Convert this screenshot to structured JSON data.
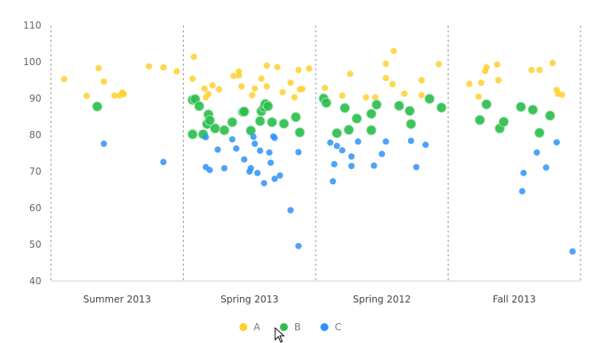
{
  "chart_data": {
    "type": "scatter",
    "title": "",
    "xlabel": "",
    "ylabel": "",
    "ylim": [
      40,
      110
    ],
    "yticks": [
      40,
      50,
      60,
      70,
      80,
      90,
      100,
      110
    ],
    "categories": [
      "Summer 2013",
      "Spring 2013",
      "Spring 2012",
      "Fall 2013"
    ],
    "series": [
      {
        "name": "A",
        "color": "#FFD02F",
        "points": [
          {
            "cat": 0,
            "off": 0.1,
            "y": 95.3
          },
          {
            "cat": 0,
            "off": 0.27,
            "y": 90.7
          },
          {
            "cat": 0,
            "off": 0.36,
            "y": 98.3
          },
          {
            "cat": 0,
            "off": 0.4,
            "y": 94.6
          },
          {
            "cat": 0,
            "off": 0.48,
            "y": 90.8
          },
          {
            "cat": 0,
            "off": 0.52,
            "y": 90.8
          },
          {
            "cat": 0,
            "off": 0.54,
            "y": 91.6
          },
          {
            "cat": 0,
            "off": 0.55,
            "y": 91.2
          },
          {
            "cat": 0,
            "off": 0.74,
            "y": 98.8
          },
          {
            "cat": 0,
            "off": 0.85,
            "y": 98.5
          },
          {
            "cat": 0,
            "off": 0.95,
            "y": 97.4
          },
          {
            "cat": 1,
            "off": 0.07,
            "y": 95.4
          },
          {
            "cat": 1,
            "off": 0.08,
            "y": 101.4
          },
          {
            "cat": 1,
            "off": 0.16,
            "y": 92.7
          },
          {
            "cat": 1,
            "off": 0.17,
            "y": 90.3
          },
          {
            "cat": 1,
            "off": 0.19,
            "y": 91.2
          },
          {
            "cat": 1,
            "off": 0.22,
            "y": 93.6
          },
          {
            "cat": 1,
            "off": 0.27,
            "y": 92.5
          },
          {
            "cat": 1,
            "off": 0.38,
            "y": 96.2
          },
          {
            "cat": 1,
            "off": 0.42,
            "y": 97.4
          },
          {
            "cat": 1,
            "off": 0.42,
            "y": 96.3
          },
          {
            "cat": 1,
            "off": 0.44,
            "y": 93.3
          },
          {
            "cat": 1,
            "off": 0.52,
            "y": 90.9
          },
          {
            "cat": 1,
            "off": 0.54,
            "y": 92.7
          },
          {
            "cat": 1,
            "off": 0.59,
            "y": 95.4
          },
          {
            "cat": 1,
            "off": 0.63,
            "y": 93.3
          },
          {
            "cat": 1,
            "off": 0.63,
            "y": 99.0
          },
          {
            "cat": 1,
            "off": 0.71,
            "y": 98.6
          },
          {
            "cat": 1,
            "off": 0.75,
            "y": 91.7
          },
          {
            "cat": 1,
            "off": 0.81,
            "y": 94.3
          },
          {
            "cat": 1,
            "off": 0.84,
            "y": 90.3
          },
          {
            "cat": 1,
            "off": 0.87,
            "y": 97.8
          },
          {
            "cat": 1,
            "off": 0.88,
            "y": 92.5
          },
          {
            "cat": 1,
            "off": 0.9,
            "y": 92.6
          },
          {
            "cat": 1,
            "off": 0.95,
            "y": 98.2
          },
          {
            "cat": 2,
            "off": 0.07,
            "y": 92.9
          },
          {
            "cat": 2,
            "off": 0.2,
            "y": 90.8
          },
          {
            "cat": 2,
            "off": 0.26,
            "y": 96.7
          },
          {
            "cat": 2,
            "off": 0.38,
            "y": 90.3
          },
          {
            "cat": 2,
            "off": 0.45,
            "y": 90.3
          },
          {
            "cat": 2,
            "off": 0.53,
            "y": 99.5
          },
          {
            "cat": 2,
            "off": 0.53,
            "y": 95.6
          },
          {
            "cat": 2,
            "off": 0.58,
            "y": 93.9
          },
          {
            "cat": 2,
            "off": 0.59,
            "y": 103.0
          },
          {
            "cat": 2,
            "off": 0.67,
            "y": 91.3
          },
          {
            "cat": 2,
            "off": 0.8,
            "y": 95.0
          },
          {
            "cat": 2,
            "off": 0.8,
            "y": 90.9
          },
          {
            "cat": 2,
            "off": 0.93,
            "y": 99.4
          },
          {
            "cat": 3,
            "off": 0.16,
            "y": 94.0
          },
          {
            "cat": 3,
            "off": 0.23,
            "y": 90.5
          },
          {
            "cat": 3,
            "off": 0.25,
            "y": 94.3
          },
          {
            "cat": 3,
            "off": 0.28,
            "y": 97.5
          },
          {
            "cat": 3,
            "off": 0.29,
            "y": 98.5
          },
          {
            "cat": 3,
            "off": 0.37,
            "y": 99.3
          },
          {
            "cat": 3,
            "off": 0.38,
            "y": 95.0
          },
          {
            "cat": 3,
            "off": 0.63,
            "y": 97.8
          },
          {
            "cat": 3,
            "off": 0.69,
            "y": 97.8
          },
          {
            "cat": 3,
            "off": 0.79,
            "y": 99.7
          },
          {
            "cat": 3,
            "off": 0.82,
            "y": 92.3
          },
          {
            "cat": 3,
            "off": 0.83,
            "y": 91.3
          },
          {
            "cat": 3,
            "off": 0.86,
            "y": 91.0
          }
        ]
      },
      {
        "name": "B",
        "color": "#2DBE4E",
        "points": [
          {
            "cat": 0,
            "off": 0.35,
            "y": 87.8
          },
          {
            "cat": 1,
            "off": 0.07,
            "y": 89.6
          },
          {
            "cat": 1,
            "off": 0.07,
            "y": 80.2
          },
          {
            "cat": 1,
            "off": 0.09,
            "y": 89.8
          },
          {
            "cat": 1,
            "off": 0.12,
            "y": 87.9
          },
          {
            "cat": 1,
            "off": 0.15,
            "y": 80.2
          },
          {
            "cat": 1,
            "off": 0.18,
            "y": 83.0
          },
          {
            "cat": 1,
            "off": 0.19,
            "y": 85.6
          },
          {
            "cat": 1,
            "off": 0.2,
            "y": 84.0
          },
          {
            "cat": 1,
            "off": 0.24,
            "y": 81.8
          },
          {
            "cat": 1,
            "off": 0.31,
            "y": 81.3
          },
          {
            "cat": 1,
            "off": 0.37,
            "y": 83.5
          },
          {
            "cat": 1,
            "off": 0.45,
            "y": 86.3
          },
          {
            "cat": 1,
            "off": 0.46,
            "y": 86.4
          },
          {
            "cat": 1,
            "off": 0.51,
            "y": 81.2
          },
          {
            "cat": 1,
            "off": 0.58,
            "y": 83.8
          },
          {
            "cat": 1,
            "off": 0.59,
            "y": 86.5
          },
          {
            "cat": 1,
            "off": 0.61,
            "y": 87.6
          },
          {
            "cat": 1,
            "off": 0.62,
            "y": 88.5
          },
          {
            "cat": 1,
            "off": 0.64,
            "y": 87.9
          },
          {
            "cat": 1,
            "off": 0.67,
            "y": 83.5
          },
          {
            "cat": 1,
            "off": 0.76,
            "y": 83.1
          },
          {
            "cat": 1,
            "off": 0.85,
            "y": 84.9
          },
          {
            "cat": 1,
            "off": 0.88,
            "y": 80.7
          },
          {
            "cat": 2,
            "off": 0.06,
            "y": 90.0
          },
          {
            "cat": 2,
            "off": 0.08,
            "y": 88.8
          },
          {
            "cat": 2,
            "off": 0.16,
            "y": 80.5
          },
          {
            "cat": 2,
            "off": 0.22,
            "y": 87.4
          },
          {
            "cat": 2,
            "off": 0.25,
            "y": 81.4
          },
          {
            "cat": 2,
            "off": 0.31,
            "y": 84.5
          },
          {
            "cat": 2,
            "off": 0.42,
            "y": 85.8
          },
          {
            "cat": 2,
            "off": 0.42,
            "y": 81.3
          },
          {
            "cat": 2,
            "off": 0.46,
            "y": 88.3
          },
          {
            "cat": 2,
            "off": 0.63,
            "y": 88.0
          },
          {
            "cat": 2,
            "off": 0.71,
            "y": 86.6
          },
          {
            "cat": 2,
            "off": 0.72,
            "y": 83.0
          },
          {
            "cat": 2,
            "off": 0.86,
            "y": 89.9
          },
          {
            "cat": 2,
            "off": 0.95,
            "y": 87.5
          },
          {
            "cat": 3,
            "off": 0.24,
            "y": 84.1
          },
          {
            "cat": 3,
            "off": 0.29,
            "y": 88.4
          },
          {
            "cat": 3,
            "off": 0.39,
            "y": 81.8
          },
          {
            "cat": 3,
            "off": 0.42,
            "y": 83.6
          },
          {
            "cat": 3,
            "off": 0.55,
            "y": 87.7
          },
          {
            "cat": 3,
            "off": 0.64,
            "y": 86.9
          },
          {
            "cat": 3,
            "off": 0.69,
            "y": 80.6
          },
          {
            "cat": 3,
            "off": 0.77,
            "y": 85.3
          }
        ]
      },
      {
        "name": "C",
        "color": "#2E93F7",
        "points": [
          {
            "cat": 0,
            "off": 0.4,
            "y": 77.6
          },
          {
            "cat": 0,
            "off": 0.85,
            "y": 72.6
          },
          {
            "cat": 1,
            "off": 0.17,
            "y": 79.4
          },
          {
            "cat": 1,
            "off": 0.17,
            "y": 71.2
          },
          {
            "cat": 1,
            "off": 0.2,
            "y": 70.4
          },
          {
            "cat": 1,
            "off": 0.26,
            "y": 76.0
          },
          {
            "cat": 1,
            "off": 0.31,
            "y": 70.9
          },
          {
            "cat": 1,
            "off": 0.37,
            "y": 78.8
          },
          {
            "cat": 1,
            "off": 0.4,
            "y": 76.3
          },
          {
            "cat": 1,
            "off": 0.46,
            "y": 73.3
          },
          {
            "cat": 1,
            "off": 0.5,
            "y": 70.0
          },
          {
            "cat": 1,
            "off": 0.51,
            "y": 70.9
          },
          {
            "cat": 1,
            "off": 0.53,
            "y": 79.5
          },
          {
            "cat": 1,
            "off": 0.54,
            "y": 77.6
          },
          {
            "cat": 1,
            "off": 0.56,
            "y": 69.6
          },
          {
            "cat": 1,
            "off": 0.58,
            "y": 75.7
          },
          {
            "cat": 1,
            "off": 0.61,
            "y": 66.8
          },
          {
            "cat": 1,
            "off": 0.65,
            "y": 75.2
          },
          {
            "cat": 1,
            "off": 0.66,
            "y": 72.4
          },
          {
            "cat": 1,
            "off": 0.68,
            "y": 79.6
          },
          {
            "cat": 1,
            "off": 0.69,
            "y": 68.0
          },
          {
            "cat": 1,
            "off": 0.69,
            "y": 79.2
          },
          {
            "cat": 1,
            "off": 0.73,
            "y": 68.9
          },
          {
            "cat": 1,
            "off": 0.81,
            "y": 59.4
          },
          {
            "cat": 1,
            "off": 0.87,
            "y": 75.3
          },
          {
            "cat": 1,
            "off": 0.87,
            "y": 49.6
          },
          {
            "cat": 2,
            "off": 0.11,
            "y": 77.9
          },
          {
            "cat": 2,
            "off": 0.13,
            "y": 67.3
          },
          {
            "cat": 2,
            "off": 0.14,
            "y": 72.0
          },
          {
            "cat": 2,
            "off": 0.16,
            "y": 77.0
          },
          {
            "cat": 2,
            "off": 0.2,
            "y": 75.8
          },
          {
            "cat": 2,
            "off": 0.27,
            "y": 74.1
          },
          {
            "cat": 2,
            "off": 0.27,
            "y": 71.5
          },
          {
            "cat": 2,
            "off": 0.32,
            "y": 78.2
          },
          {
            "cat": 2,
            "off": 0.44,
            "y": 71.6
          },
          {
            "cat": 2,
            "off": 0.5,
            "y": 74.8
          },
          {
            "cat": 2,
            "off": 0.53,
            "y": 78.2
          },
          {
            "cat": 2,
            "off": 0.72,
            "y": 78.4
          },
          {
            "cat": 2,
            "off": 0.76,
            "y": 71.2
          },
          {
            "cat": 2,
            "off": 0.83,
            "y": 77.3
          },
          {
            "cat": 3,
            "off": 0.56,
            "y": 64.6
          },
          {
            "cat": 3,
            "off": 0.57,
            "y": 69.6
          },
          {
            "cat": 3,
            "off": 0.67,
            "y": 75.2
          },
          {
            "cat": 3,
            "off": 0.74,
            "y": 71.1
          },
          {
            "cat": 3,
            "off": 0.82,
            "y": 78.0
          },
          {
            "cat": 3,
            "off": 0.94,
            "y": 48.1
          }
        ]
      }
    ],
    "legend": {
      "position": "bottom-center",
      "items": [
        "A",
        "B",
        "C"
      ]
    }
  }
}
